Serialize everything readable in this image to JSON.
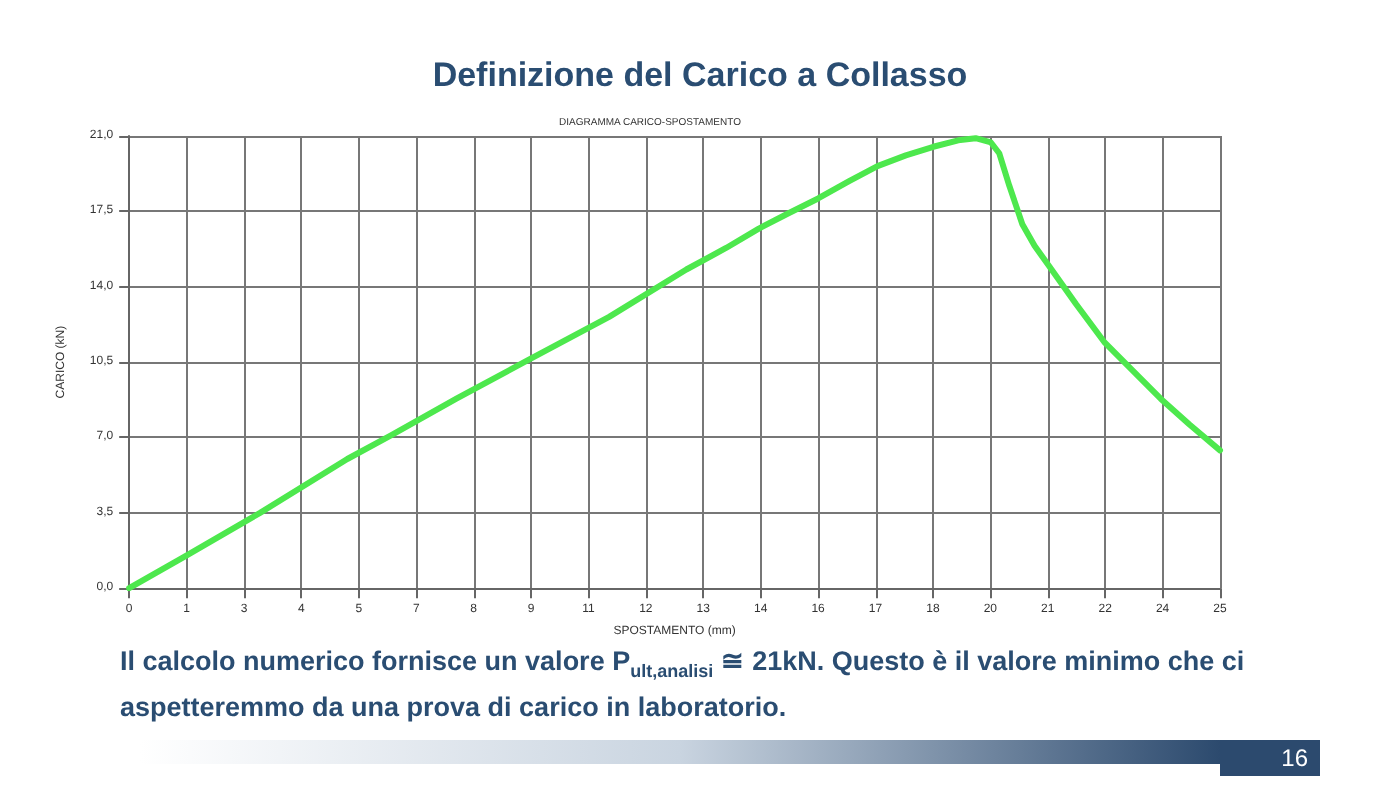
{
  "chart_data": {
    "type": "line",
    "title": "Definizione del Carico a Collasso",
    "subtitle": "DIAGRAMMA CARICO-SPOSTAMENTO",
    "xlabel": "SPOSTAMENTO (mm)",
    "ylabel": "CARICO (kN)",
    "annotations": [
      "Il calcolo numerico fornisce un valore P$_{ult,analisi}$ ≅ 21kN. Questo è il valore minimo che ci aspetteremmo da una prova di carico in laboratorio.",
      "16"
    ],
    "series": [
      {
        "color": "#4de84d",
        "x": [
          0,
          1.3,
          3,
          5,
          6,
          7.5,
          9.15,
          11,
          12.77,
          13.68,
          14.43,
          15.1,
          15.79,
          16.5,
          17.15,
          17.8,
          18.43,
          19,
          19.4,
          19.75,
          19.94,
          20.17,
          20.47,
          20.75,
          21.07,
          21.7,
          22.36,
          23,
          23.64,
          24.3,
          25
        ],
        "values": [
          0,
          1.5,
          3.5,
          6,
          7.1,
          8.8,
          10.6,
          12.6,
          14.8,
          15.8,
          16.7,
          17.4,
          18.1,
          18.9,
          19.6,
          20.1,
          20.5,
          20.8,
          20.9,
          20.7,
          20.2,
          18.7,
          16.9,
          15.9,
          15.0,
          13.2,
          11.4,
          10.1,
          8.8,
          7.6,
          6.4
        ]
      }
    ],
    "xlim": [
      0,
      25
    ],
    "ylim": [
      0,
      21
    ],
    "xticks": [
      0,
      {
        "value": 1.316,
        "label": "1"
      },
      {
        "value": 2.632,
        "label": "3"
      },
      {
        "value": 3.947,
        "label": "4"
      },
      {
        "value": 5.263,
        "label": "5"
      },
      {
        "value": 6.579,
        "label": "7"
      },
      {
        "value": 7.895,
        "label": "8"
      },
      {
        "value": 9.211,
        "label": "9"
      },
      {
        "value": 10.526,
        "label": "11"
      },
      {
        "value": 11.842,
        "label": "12"
      },
      {
        "value": 13.158,
        "label": "13"
      },
      {
        "value": 14.474,
        "label": "14"
      },
      {
        "value": 15.789,
        "label": "16"
      },
      {
        "value": 17.105,
        "label": "17"
      },
      {
        "value": 18.421,
        "label": "18"
      },
      {
        "value": 19.737,
        "label": "20"
      },
      {
        "value": 21.053,
        "label": "21"
      },
      {
        "value": 22.368,
        "label": "22"
      },
      {
        "value": 23.684,
        "label": "24"
      },
      25
    ],
    "yticks": [
      {
        "value": 0,
        "label": "0,0"
      },
      {
        "value": 3.5,
        "label": "3,5"
      },
      {
        "value": 7,
        "label": "7,0"
      },
      {
        "value": 10.5,
        "label": "10,5"
      },
      {
        "value": 14,
        "label": "14,0"
      },
      {
        "value": 17.5,
        "label": "17,5"
      },
      {
        "value": 21,
        "label": "21,0"
      }
    ],
    "grid": true,
    "marker": "none",
    "line_style": "solid"
  }
}
